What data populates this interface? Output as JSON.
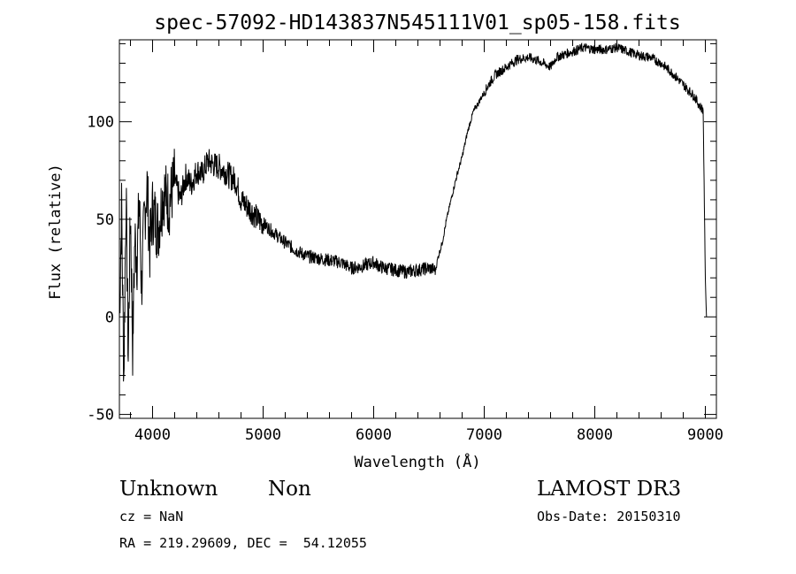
{
  "chart_data": {
    "type": "line",
    "title": "spec-57092-HD143837N545111V01_sp05-158.fits",
    "xlabel": "Wavelength (Å)",
    "ylabel": "Flux (relative)",
    "xlim": [
      3700,
      9100
    ],
    "ylim": [
      -52,
      142
    ],
    "x_ticks": [
      "4000",
      "5000",
      "6000",
      "7000",
      "8000",
      "9000"
    ],
    "y_ticks": [
      "-50",
      "0",
      "50",
      "100"
    ],
    "grid": false,
    "legend": "none",
    "series": [
      {
        "x": [
          3700,
          3720,
          3740,
          3760,
          3780,
          3800,
          3820,
          3840,
          3860,
          3880,
          3900,
          3925,
          3950,
          3975,
          4000,
          4050,
          4100,
          4150,
          4200,
          4250,
          4300,
          4350,
          4400,
          4450,
          4500,
          4550,
          4600,
          4650,
          4700,
          4750,
          4800,
          4850,
          4900,
          4950,
          5000,
          5100,
          5200,
          5300,
          5400,
          5500,
          5600,
          5700,
          5800,
          5900,
          6000,
          6050,
          6100,
          6200,
          6300,
          6400,
          6500,
          6560,
          6580,
          6620,
          6660,
          6700,
          6750,
          6800,
          6850,
          6900,
          6950,
          7000,
          7050,
          7100,
          7200,
          7300,
          7400,
          7500,
          7600,
          7650,
          7700,
          7800,
          7900,
          8000,
          8100,
          8200,
          8300,
          8400,
          8500,
          8600,
          8700,
          8800,
          8850,
          8900,
          8950,
          8980,
          9000,
          9010
        ],
        "y": [
          0,
          55,
          -30,
          62,
          -20,
          55,
          -15,
          40,
          30,
          60,
          15,
          50,
          68,
          35,
          55,
          45,
          65,
          58,
          70,
          60,
          72,
          68,
          75,
          73,
          80,
          78,
          77,
          75,
          72,
          70,
          60,
          57,
          54,
          50,
          48,
          43,
          38,
          34,
          31,
          30,
          29,
          28,
          25,
          26,
          28,
          26,
          25,
          24,
          23,
          24,
          25,
          24,
          30,
          38,
          50,
          60,
          72,
          82,
          95,
          105,
          110,
          115,
          120,
          124,
          128,
          132,
          133,
          131,
          128,
          133,
          134,
          136,
          138,
          137,
          137,
          138,
          136,
          134,
          133,
          130,
          125,
          119,
          116,
          113,
          108,
          106,
          20,
          0
        ]
      }
    ],
    "annotations": [
      "Unknown",
      "Non",
      "LAMOST DR3",
      "cz = NaN",
      "Obs-Date: 20150310",
      "RA = 219.29609, DEC =  54.12055"
    ]
  }
}
